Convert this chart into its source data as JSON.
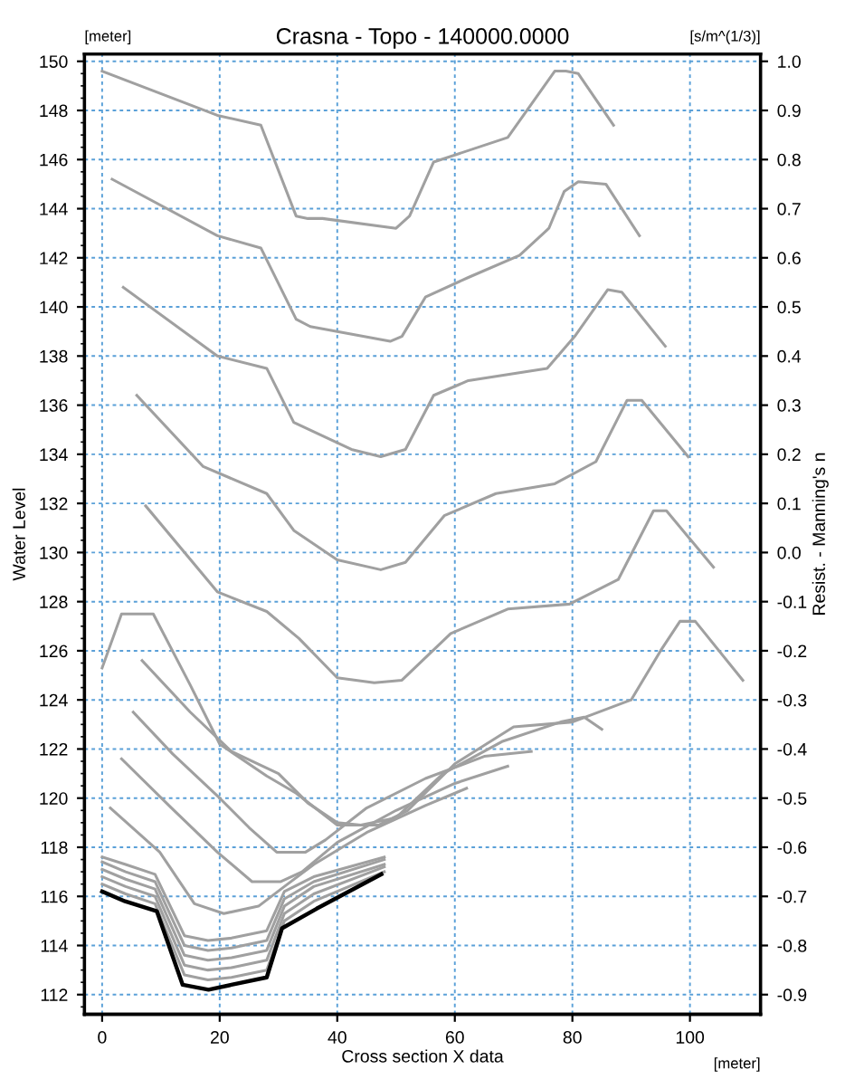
{
  "chart_data": {
    "type": "line",
    "title": "Crasna - Topo - 140000.0000",
    "xlabel": "Cross section X data",
    "ylabel": "Water Level",
    "y2label": "Resist. - Manning's n",
    "annotations": [
      "[meter]",
      "[s/m^(1/3)]",
      "[meter]"
    ],
    "xlim": [
      -3,
      112
    ],
    "xticks": [
      0,
      20,
      40,
      60,
      80,
      100
    ],
    "ylim": [
      111.2,
      150.3
    ],
    "yticks": [
      112,
      114,
      116,
      118,
      120,
      122,
      124,
      126,
      128,
      130,
      132,
      134,
      136,
      138,
      140,
      142,
      144,
      146,
      148,
      150
    ],
    "y2lim": [
      -0.94,
      1.015
    ],
    "y2ticks": [
      -0.9,
      -0.8,
      -0.7,
      -0.6,
      -0.5,
      -0.4,
      -0.3,
      -0.2,
      -0.1,
      {
        "value": 0,
        "label": "0.0"
      },
      0.1,
      0.2,
      0.3,
      0.4,
      0.5,
      0.6,
      0.7,
      0.8,
      0.9,
      {
        "value": 1,
        "label": "1.0"
      }
    ],
    "grid": true,
    "legend": false,
    "line_style": "solid",
    "marker": "none",
    "series": [
      {
        "color": "#a0a0a0",
        "x": [
          0,
          19.6,
          27,
          33,
          35,
          37.5,
          50,
          52.3,
          56.4,
          69,
          77,
          78.9,
          81,
          87
        ],
        "values": [
          149.6,
          147.8,
          147.4,
          143.7,
          143.6,
          143.6,
          143.2,
          143.7,
          145.9,
          146.9,
          149.6,
          149.6,
          149.5,
          147.4
        ]
      },
      {
        "color": "#a0a0a0",
        "x": [
          1.7,
          19.6,
          27,
          33,
          35.4,
          49,
          51,
          55,
          62.3,
          71,
          76,
          78.6,
          81,
          85.7,
          91.4
        ],
        "values": [
          145.2,
          142.9,
          142.4,
          139.5,
          139.2,
          138.6,
          138.8,
          140.4,
          141.2,
          142.1,
          143.2,
          144.7,
          145.1,
          145.0,
          142.9
        ]
      },
      {
        "color": "#a0a0a0",
        "x": [
          3.6,
          19.6,
          28,
          32.6,
          42.4,
          47.4,
          51.6,
          56.4,
          62.3,
          75.7,
          80.4,
          86,
          88.4,
          95.8
        ],
        "values": [
          140.8,
          138.0,
          137.5,
          135.3,
          134.2,
          133.9,
          134.2,
          136.4,
          137.0,
          137.5,
          138.8,
          140.7,
          140.6,
          138.4
        ]
      },
      {
        "color": "#a0a0a0",
        "x": [
          5.9,
          17.2,
          28,
          32.6,
          40,
          47.4,
          51.6,
          58.2,
          67,
          77,
          84,
          89.3,
          91.8,
          99.7
        ],
        "values": [
          136.4,
          133.5,
          132.4,
          130.9,
          129.7,
          129.3,
          129.6,
          131.5,
          132.4,
          132.8,
          133.7,
          136.2,
          136.2,
          133.9
        ]
      },
      {
        "color": "#a0a0a0",
        "x": [
          7.4,
          19.6,
          28,
          33.5,
          40,
          46.3,
          51,
          59.3,
          69,
          79.5,
          87.8,
          93.8,
          96,
          104
        ],
        "values": [
          131.9,
          128.4,
          127.6,
          126.5,
          124.9,
          124.7,
          124.8,
          126.7,
          127.7,
          127.9,
          128.9,
          131.7,
          131.7,
          129.4
        ]
      },
      {
        "color": "#a0a0a0",
        "x": [
          0,
          3.3,
          8.7,
          15,
          20,
          28,
          33,
          40,
          47,
          52,
          60,
          70,
          80,
          90,
          95,
          98.3,
          100.9,
          109
        ],
        "values": [
          125.3,
          127.5,
          127.5,
          124.6,
          122.2,
          120.9,
          120.2,
          118.9,
          118.9,
          119.5,
          121.4,
          122.9,
          123.1,
          124.0,
          126.0,
          127.2,
          127.2,
          124.8
        ]
      },
      {
        "color": "#a0a0a0",
        "x": [
          6.8,
          15,
          22,
          30,
          35,
          40,
          44,
          50,
          58,
          68,
          78,
          82,
          85
        ],
        "values": [
          125.6,
          123.5,
          121.9,
          121.0,
          119.8,
          119.0,
          118.9,
          119.2,
          121.0,
          122.3,
          123.1,
          123.3,
          122.8
        ]
      },
      {
        "color": "#a0a0a0",
        "x": [
          5.3,
          12,
          20,
          25,
          29.7,
          34.6,
          38,
          45,
          55,
          65,
          73
        ],
        "values": [
          123.5,
          121.8,
          120.0,
          118.8,
          117.8,
          117.8,
          118.3,
          119.6,
          120.8,
          121.7,
          121.9
        ]
      },
      {
        "color": "#a0a0a0",
        "x": [
          3.3,
          11.8,
          19.6,
          25.5,
          30.4,
          34,
          40,
          50,
          60,
          69
        ],
        "values": [
          121.6,
          119.6,
          117.8,
          116.6,
          116.6,
          117.0,
          118.2,
          119.5,
          120.6,
          121.3
        ]
      },
      {
        "color": "#a0a0a0",
        "x": [
          1.4,
          9.8,
          15.7,
          20.7,
          26.6,
          31,
          36,
          45,
          55,
          62
        ],
        "values": [
          119.6,
          117.8,
          115.7,
          115.3,
          115.6,
          116.4,
          117.3,
          118.6,
          119.7,
          120.4
        ]
      },
      {
        "color": "#a0a0a0",
        "x": [
          0,
          4,
          9,
          14,
          18,
          22,
          28,
          31,
          36,
          48
        ],
        "values": [
          117.6,
          117.3,
          116.9,
          114.4,
          114.2,
          114.3,
          114.6,
          116.2,
          116.8,
          117.6
        ]
      },
      {
        "color": "#a0a0a0",
        "x": [
          0,
          4,
          9,
          14,
          18,
          22,
          28,
          31,
          36,
          48
        ],
        "values": [
          117.4,
          117.0,
          116.6,
          114.0,
          113.8,
          113.9,
          114.2,
          115.9,
          116.6,
          117.5
        ]
      },
      {
        "color": "#a0a0a0",
        "x": [
          0,
          4,
          9,
          14,
          18,
          22,
          28,
          31,
          36,
          48
        ],
        "values": [
          117.1,
          116.7,
          116.3,
          113.6,
          113.4,
          113.5,
          113.8,
          115.6,
          116.4,
          117.3
        ]
      },
      {
        "color": "#a0a0a0",
        "x": [
          0,
          4,
          9,
          14,
          18,
          22,
          28,
          31,
          36,
          48
        ],
        "values": [
          116.8,
          116.4,
          116.0,
          113.2,
          113.0,
          113.1,
          113.4,
          115.3,
          116.1,
          117.2
        ]
      },
      {
        "color": "#a0a0a0",
        "x": [
          0,
          4,
          9,
          14,
          18,
          22,
          28,
          31,
          36,
          48
        ],
        "values": [
          116.5,
          116.1,
          115.7,
          112.8,
          112.6,
          112.7,
          113.0,
          115.0,
          115.8,
          117.0
        ]
      },
      {
        "color": "#000000",
        "x": [
          0,
          3.9,
          9.3,
          13.7,
          18.1,
          22,
          28,
          30.6,
          36.5,
          47.5
        ],
        "values": [
          116.2,
          115.8,
          115.4,
          112.4,
          112.2,
          112.4,
          112.7,
          114.7,
          115.5,
          116.9
        ]
      }
    ]
  }
}
